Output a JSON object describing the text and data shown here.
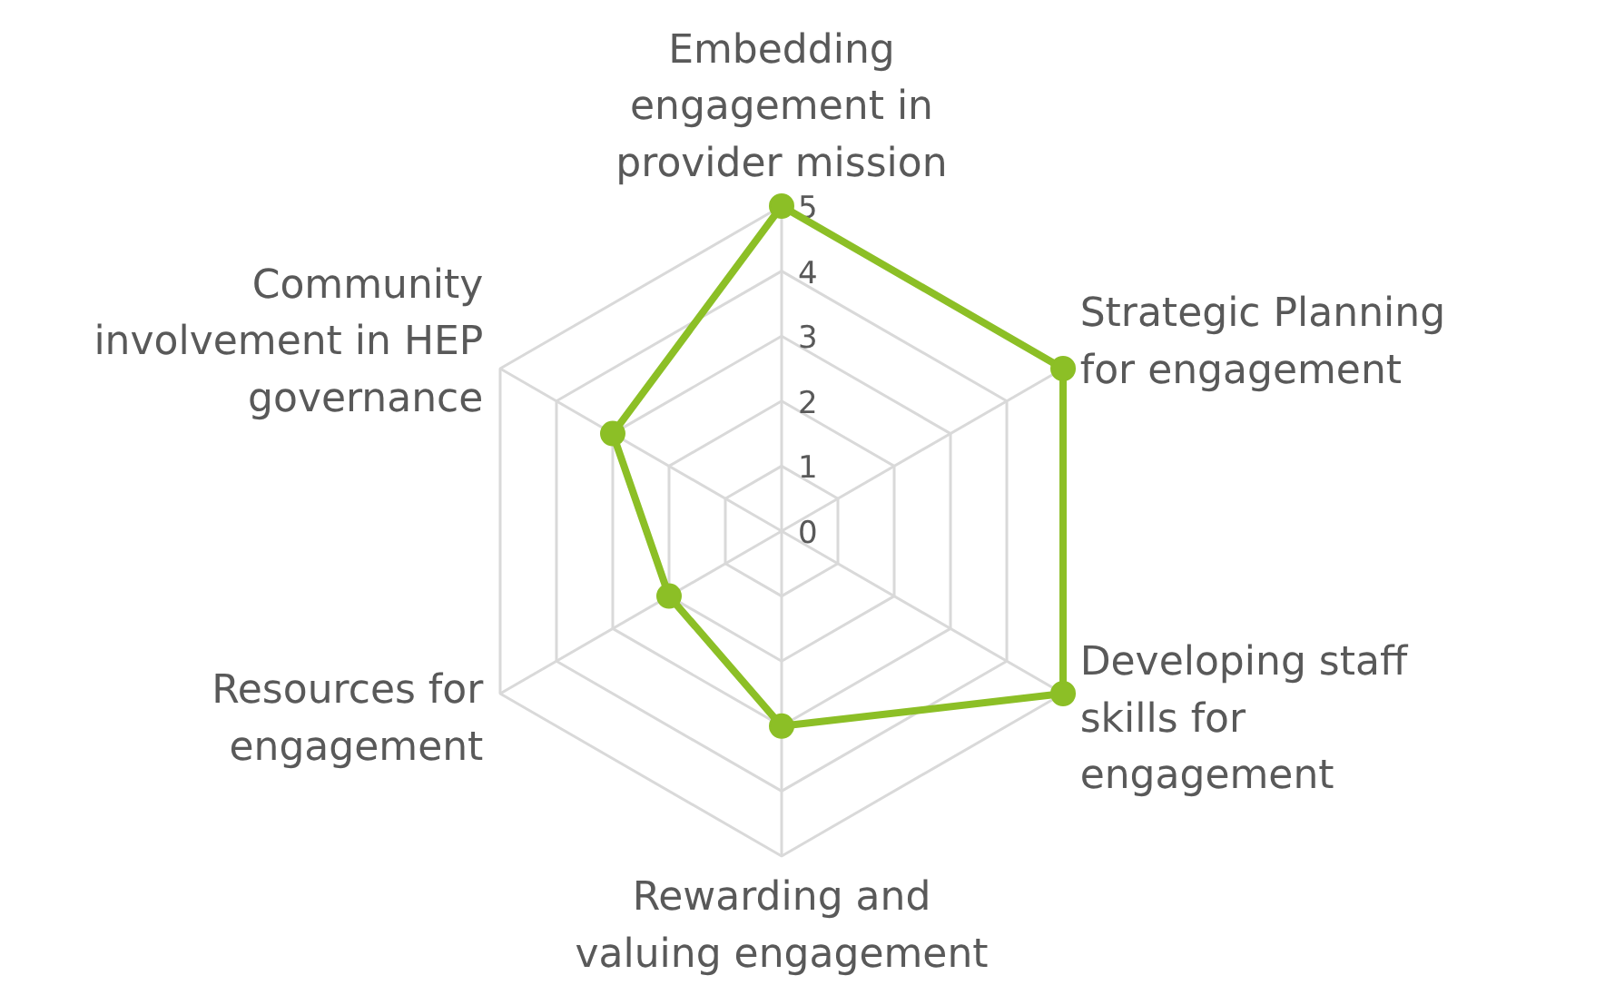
{
  "chart_data": {
    "type": "radar",
    "categories": [
      "Embedding engagement in provider mission",
      "Strategic Planning for engagement",
      "Developing staff skills for engagement",
      "Rewarding and valuing engagement",
      "Resources for engagement",
      "Community involvement in HEP governance"
    ],
    "series": [
      {
        "color": "#8cbf26",
        "values": [
          5,
          5,
          5,
          3,
          2,
          3
        ]
      }
    ],
    "ylim": [
      0,
      5
    ],
    "yticks": [
      0,
      1,
      2,
      3,
      4,
      5
    ],
    "grid": true,
    "marker": "circle"
  }
}
